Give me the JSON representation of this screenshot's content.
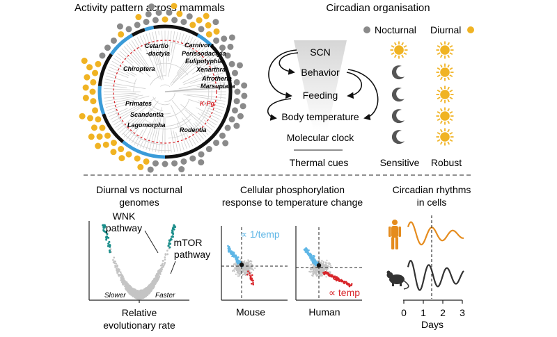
{
  "colors": {
    "nocturnal": "#8a8a8a",
    "diurnal": "#f0b323",
    "black": "#111111",
    "blue": "#3a9bd8",
    "red": "#d8262b",
    "teal": "#1b8e8b",
    "sky": "#5eb6e6",
    "grey": "#c4c4c4",
    "orange": "#e58c1e",
    "dark": "#333333"
  },
  "panelA": {
    "title": "Activity pattern across mammals",
    "clades": {
      "cetartio_line1": "Cetartio",
      "cetartio_line2": "-dactyla",
      "carnivora": "Carnivora",
      "perissodactyla": "Perissodactyla",
      "eulipotyphla": "Eulipotyphla",
      "xenarthra": "Xenarthra",
      "afrotheria": "Afrotheria",
      "marsupialia": "Marsupialia",
      "chiroptera": "Chiroptera",
      "primates": "Primates",
      "scandentia": "Scandentia",
      "lagomorpha": "Lagomorpha",
      "rodentia": "Rodentia"
    },
    "kpg_label": "K-Pg"
  },
  "panelB": {
    "title": "Circadian organisation",
    "legend": {
      "nocturnal": "Nocturnal",
      "diurnal": "Diurnal"
    },
    "nodes": {
      "scn": "SCN",
      "behavior": "Behavior",
      "feeding": "Feeding",
      "body_temperature": "Body temperature",
      "molecular_clock": "Molecular clock",
      "thermal_cues": "Thermal cues"
    },
    "columns": {
      "sensitive": "Sensitive",
      "robust": "Robust"
    },
    "sensitive_icons": [
      "sun-icon",
      "moon-icon",
      "moon-icon",
      "moon-icon",
      "moon-icon"
    ],
    "robust_icons": [
      "sun-icon",
      "sun-icon",
      "sun-icon",
      "sun-icon",
      "sun-icon"
    ]
  },
  "panelC": {
    "title_line1": "Diurnal vs nocturnal",
    "title_line2": "genomes",
    "wnk_line1": "WNK",
    "wnk_line2": "pathway",
    "mtor_line1": "mTOR",
    "mtor_line2": "pathway",
    "slower": "Slower",
    "faster": "Faster",
    "xlabel_line1": "Relative",
    "xlabel_line2": "evolutionary rate"
  },
  "panelD": {
    "title_line1": "Cellular phosphorylation",
    "title_line2": "response to temperature change",
    "inv_temp": "∝ 1/temp",
    "temp": "∝ temp",
    "mouse": "Mouse",
    "human": "Human"
  },
  "panelE": {
    "title_line1": "Circadian rhythms",
    "title_line2": "in cells",
    "x_ticks": [
      "0",
      "1",
      "2",
      "3"
    ],
    "xlabel": "Days",
    "icons": [
      "human-icon",
      "mouse-icon"
    ]
  }
}
